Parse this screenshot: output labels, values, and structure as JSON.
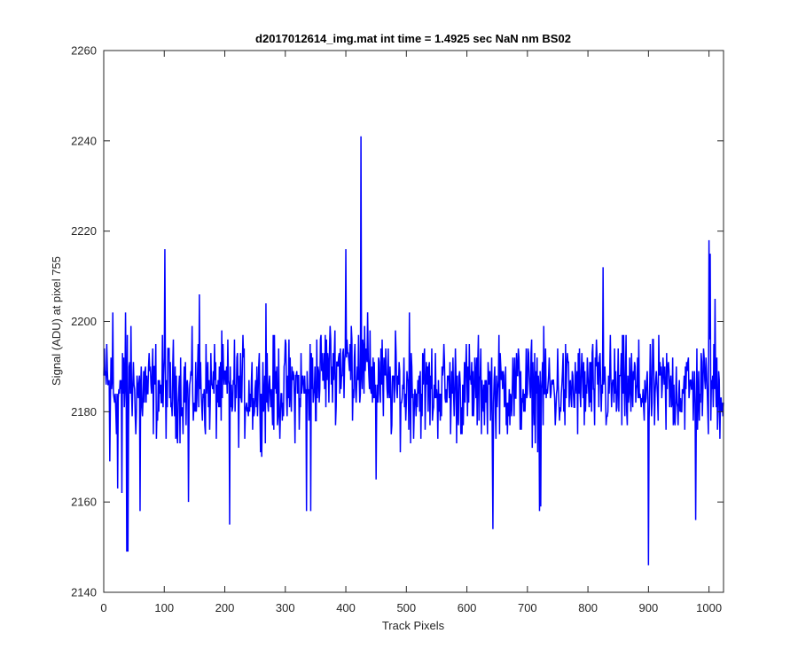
{
  "chart_data": {
    "type": "line",
    "title": "d2017012614_img.mat int time = 1.4925 sec  NaN nm BS02",
    "xlabel": "Track Pixels",
    "ylabel": "Signal (ADU) at pixel 755",
    "xlim": [
      0,
      1024
    ],
    "ylim": [
      2140,
      2260
    ],
    "xticks": [
      0,
      100,
      200,
      300,
      400,
      500,
      600,
      700,
      800,
      900,
      1000
    ],
    "yticks": [
      2140,
      2160,
      2180,
      2200,
      2220,
      2240,
      2260
    ],
    "xtick_labels": [
      "0",
      "100",
      "200",
      "300",
      "400",
      "500",
      "600",
      "700",
      "800",
      "900",
      "1000"
    ],
    "ytick_labels": [
      "2140",
      "2160",
      "2180",
      "2200",
      "2220",
      "2240",
      "2260"
    ],
    "grid": false,
    "line_color": "#0000ff",
    "series_stats": {
      "points": 1024,
      "baseline": 2185,
      "noise_amplitude": 8,
      "center_bump_range": [
        330,
        470
      ],
      "center_bump_height": 6
    },
    "notable_points": [
      {
        "x": 0,
        "y": 2188
      },
      {
        "x": 5,
        "y": 2195
      },
      {
        "x": 10,
        "y": 2169
      },
      {
        "x": 15,
        "y": 2202
      },
      {
        "x": 23,
        "y": 2163
      },
      {
        "x": 30,
        "y": 2162
      },
      {
        "x": 36,
        "y": 2202
      },
      {
        "x": 38,
        "y": 2149
      },
      {
        "x": 40,
        "y": 2149
      },
      {
        "x": 45,
        "y": 2199
      },
      {
        "x": 60,
        "y": 2158
      },
      {
        "x": 101,
        "y": 2216
      },
      {
        "x": 140,
        "y": 2160
      },
      {
        "x": 158,
        "y": 2206
      },
      {
        "x": 208,
        "y": 2155
      },
      {
        "x": 268,
        "y": 2204
      },
      {
        "x": 335,
        "y": 2158
      },
      {
        "x": 342,
        "y": 2158
      },
      {
        "x": 400,
        "y": 2216
      },
      {
        "x": 425,
        "y": 2241
      },
      {
        "x": 440,
        "y": 2198
      },
      {
        "x": 450,
        "y": 2165
      },
      {
        "x": 505,
        "y": 2202
      },
      {
        "x": 643,
        "y": 2154
      },
      {
        "x": 720,
        "y": 2158
      },
      {
        "x": 722,
        "y": 2159
      },
      {
        "x": 825,
        "y": 2212
      },
      {
        "x": 900,
        "y": 2146
      },
      {
        "x": 978,
        "y": 2156
      },
      {
        "x": 1000,
        "y": 2218
      },
      {
        "x": 1002,
        "y": 2215
      },
      {
        "x": 1010,
        "y": 2205
      },
      {
        "x": 1024,
        "y": 2182
      }
    ]
  }
}
